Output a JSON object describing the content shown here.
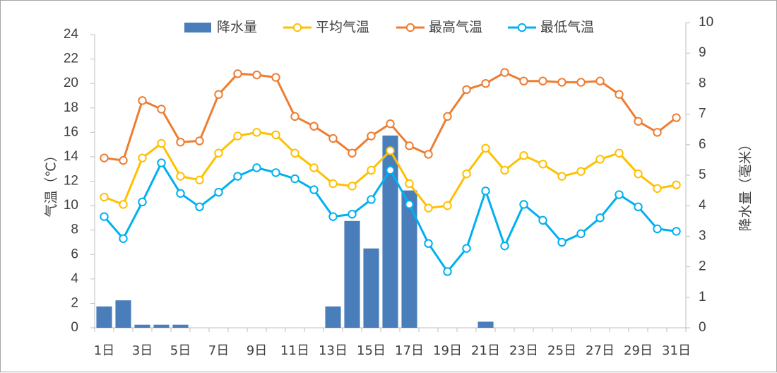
{
  "chart_data": {
    "type": "bar+line",
    "categories": [
      "1日",
      "2日",
      "3日",
      "4日",
      "5日",
      "6日",
      "7日",
      "8日",
      "9日",
      "10日",
      "11日",
      "12日",
      "13日",
      "14日",
      "15日",
      "16日",
      "17日",
      "18日",
      "19日",
      "20日",
      "21日",
      "22日",
      "23日",
      "24日",
      "25日",
      "26日",
      "27日",
      "28日",
      "29日",
      "30日",
      "31日"
    ],
    "x_tick_labels": [
      "1日",
      "3日",
      "5日",
      "7日",
      "9日",
      "11日",
      "13日",
      "15日",
      "17日",
      "19日",
      "21日",
      "23日",
      "25日",
      "27日",
      "29日",
      "31日"
    ],
    "ylabel_left": "气温（℃）",
    "ylabel_right": "降水量（毫米）",
    "y_left": {
      "min": 0,
      "max": 24,
      "step": 2,
      "ticks": [
        "0",
        "2",
        "4",
        "6",
        "8",
        "10",
        "12",
        "14",
        "16",
        "18",
        "20",
        "22",
        "24"
      ]
    },
    "y_right": {
      "min": 0,
      "max": 10,
      "step": 1,
      "ticks": [
        "0",
        "1",
        "2",
        "3",
        "4",
        "5",
        "6",
        "7",
        "8",
        "9",
        "10"
      ]
    },
    "legend": [
      {
        "key": "precip",
        "label": "降水量",
        "color": "#4a7ebb",
        "kind": "bar"
      },
      {
        "key": "avg",
        "label": "平均气温",
        "color": "#ffc000",
        "kind": "line"
      },
      {
        "key": "max",
        "label": "最高气温",
        "color": "#ed7d31",
        "kind": "line"
      },
      {
        "key": "min",
        "label": "最低气温",
        "color": "#00b0f0",
        "kind": "line"
      }
    ],
    "precipitation": [
      0.7,
      0.9,
      0.1,
      0.1,
      0.1,
      0,
      0,
      0,
      0,
      0,
      0,
      0,
      0.7,
      3.5,
      2.6,
      6.3,
      4.5,
      0,
      0,
      0,
      0.2,
      0,
      0,
      0,
      0,
      0,
      0,
      0,
      0,
      0,
      0
    ],
    "series": [
      {
        "key": "avg",
        "name": "平均气温",
        "values": [
          10.7,
          10.1,
          13.9,
          15.1,
          12.4,
          12.1,
          14.3,
          15.7,
          16.0,
          15.8,
          14.3,
          13.1,
          11.8,
          11.6,
          12.9,
          14.5,
          11.8,
          9.8,
          10.0,
          12.6,
          14.7,
          12.9,
          14.1,
          13.4,
          12.4,
          12.8,
          13.8,
          14.3,
          12.6,
          11.4,
          11.7
        ]
      },
      {
        "key": "max",
        "name": "最高气温",
        "values": [
          13.9,
          13.7,
          18.6,
          17.9,
          15.2,
          15.3,
          19.1,
          20.8,
          20.7,
          20.5,
          17.3,
          16.5,
          15.5,
          14.3,
          15.7,
          16.7,
          14.9,
          14.2,
          17.3,
          19.5,
          20.0,
          20.9,
          20.2,
          20.2,
          20.1,
          20.1,
          20.2,
          19.1,
          16.9,
          16.0,
          17.2
        ]
      },
      {
        "key": "min",
        "name": "最低气温",
        "values": [
          9.1,
          7.3,
          10.3,
          13.5,
          11.0,
          9.9,
          11.1,
          12.4,
          13.1,
          12.7,
          12.2,
          11.3,
          9.1,
          9.3,
          10.5,
          12.9,
          10.1,
          6.9,
          4.6,
          6.5,
          11.2,
          6.7,
          10.1,
          8.8,
          7.0,
          7.7,
          9.0,
          10.9,
          9.9,
          8.1,
          7.9
        ]
      }
    ]
  }
}
